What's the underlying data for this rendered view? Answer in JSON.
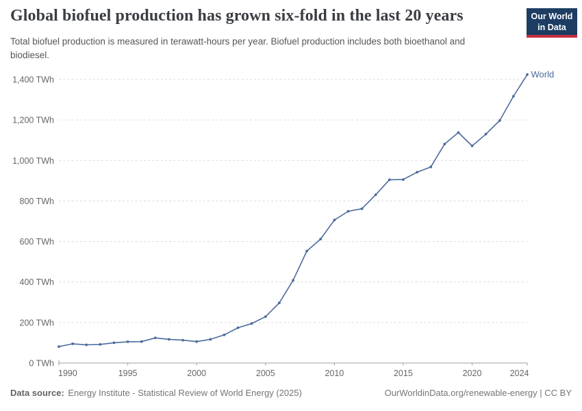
{
  "header": {
    "title": "Global biofuel production has grown six-fold in the last 20 years",
    "subtitle": "Total biofuel production is measured in terawatt-hours per year. Biofuel production includes both bioethanol and biodiesel.",
    "logo": {
      "line1": "Our World",
      "line2": "in Data",
      "bg_color": "#1d3d63",
      "accent_color": "#c5303e"
    }
  },
  "chart_data": {
    "type": "line",
    "title": "Global biofuel production has grown six-fold in the last 20 years",
    "unit": "TWh",
    "xlim": [
      1990,
      2024
    ],
    "ylim": [
      0,
      1440
    ],
    "grid": "dashed horizontal gridlines",
    "legend_position": "end-of-line label",
    "x_ticks": [
      1990,
      1995,
      2000,
      2005,
      2010,
      2015,
      2020,
      2024
    ],
    "y_ticks": [
      0,
      200,
      400,
      600,
      800,
      1000,
      1200,
      1400
    ],
    "y_tick_suffix": " TWh",
    "colors": {
      "line": "#4c6a9c",
      "gridline": "#dadada",
      "axis": "#9e9e9e",
      "tick_label": "#666666"
    },
    "series": [
      {
        "name": "World",
        "color": "#4c6a9c",
        "x": [
          1990,
          1991,
          1992,
          1993,
          1994,
          1995,
          1996,
          1997,
          1998,
          1999,
          2000,
          2001,
          2002,
          2003,
          2004,
          2005,
          2006,
          2007,
          2008,
          2009,
          2010,
          2011,
          2012,
          2013,
          2014,
          2015,
          2016,
          2017,
          2018,
          2019,
          2020,
          2021,
          2022,
          2023,
          2024
        ],
        "values": [
          81,
          95,
          90,
          92,
          100,
          105,
          106,
          124,
          117,
          113,
          106,
          117,
          139,
          174,
          195,
          229,
          297,
          408,
          553,
          612,
          706,
          749,
          762,
          831,
          905,
          906,
          942,
          968,
          1081,
          1138,
          1072,
          1130,
          1197,
          1317,
          1424
        ]
      }
    ]
  },
  "footer": {
    "datasource_label": "Data source:",
    "datasource_value": "Energy Institute - Statistical Review of World Energy (2025)",
    "link": "OurWorldinData.org/renewable-energy",
    "separator": "|",
    "license": "CC BY"
  }
}
